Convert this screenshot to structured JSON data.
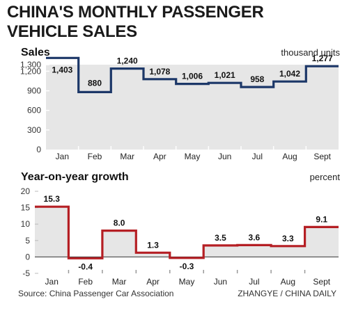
{
  "title_line1": "CHINA'S MONTHLY PASSENGER",
  "title_line2": "VEHICLE SALES",
  "source": "Source: China Passenger Car Association",
  "credit": "ZHANGYE / CHINA DAILY",
  "colors": {
    "sales_line": "#1c3768",
    "growth_line": "#b51f24",
    "fill": "#e6e6e6",
    "grid": "#ffffff"
  },
  "chart_data": [
    {
      "type": "area",
      "title": "Sales",
      "unit": "thousand units",
      "categories": [
        "Jan",
        "Feb",
        "Mar",
        "Apr",
        "May",
        "Jun",
        "Jul",
        "Aug",
        "Sept"
      ],
      "values": [
        1403,
        880,
        1240,
        1078,
        1006,
        1021,
        958,
        1042,
        1277
      ],
      "value_labels": [
        "1,403",
        "880",
        "1,240",
        "1,078",
        "1,006",
        "1,021",
        "958",
        "1,042",
        "1,277"
      ],
      "y_ticks": [
        "0",
        "300",
        "600",
        "900",
        "1,200",
        "1,300"
      ],
      "y_tick_values": [
        0,
        300,
        600,
        900,
        1200,
        1300
      ],
      "ylim": [
        0,
        1300
      ],
      "grid": false,
      "step": true
    },
    {
      "type": "area",
      "title": "Year-on-year growth",
      "unit": "percent",
      "categories": [
        "Jan",
        "Feb",
        "Mar",
        "Apr",
        "May",
        "Jun",
        "Jul",
        "Aug",
        "Sept"
      ],
      "values": [
        15.3,
        -0.4,
        8.0,
        1.3,
        -0.3,
        3.5,
        3.6,
        3.3,
        9.1
      ],
      "value_labels": [
        "15.3",
        "-0.4",
        "8.0",
        "1.3",
        "-0.3",
        "3.5",
        "3.6",
        "3.3",
        "9.1"
      ],
      "y_ticks": [
        "-5",
        "0",
        "5",
        "10",
        "15",
        "20"
      ],
      "y_tick_values": [
        -5,
        0,
        5,
        10,
        15,
        20
      ],
      "ylim": [
        -5,
        20
      ],
      "grid": true,
      "step": true
    }
  ]
}
